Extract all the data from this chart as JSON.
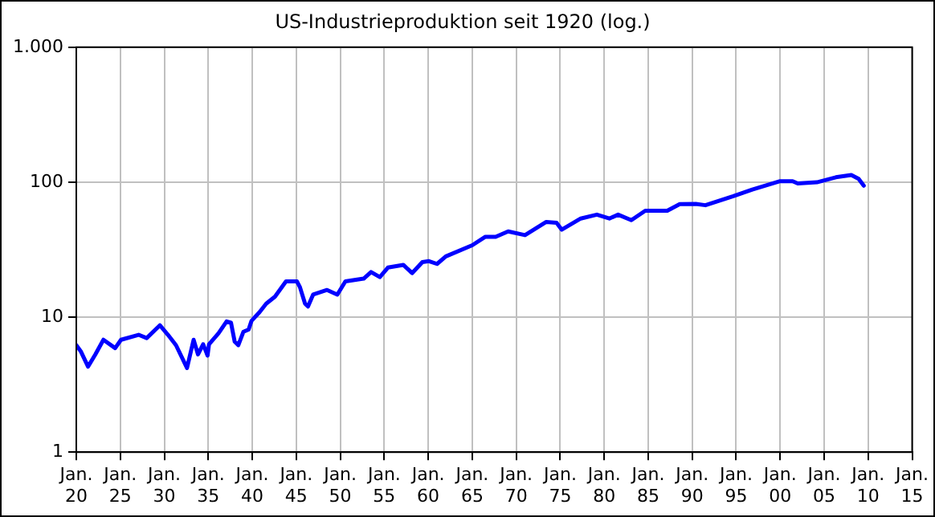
{
  "chart_data": {
    "type": "line",
    "title": "US-Industrieproduktion seit 1920 (log.)",
    "log": "y",
    "grid": true,
    "legend": false,
    "marker": "none",
    "line_style": "solid",
    "xlim": [
      "1920-01",
      "2015-01"
    ],
    "xticks": [
      {
        "value": "1920-01",
        "label": "Jan. 20"
      },
      {
        "value": "1925-01",
        "label": "Jan. 25"
      },
      {
        "value": "1930-01",
        "label": "Jan. 30"
      },
      {
        "value": "1935-01",
        "label": "Jan. 35"
      },
      {
        "value": "1940-01",
        "label": "Jan. 40"
      },
      {
        "value": "1945-01",
        "label": "Jan. 45"
      },
      {
        "value": "1950-01",
        "label": "Jan. 50"
      },
      {
        "value": "1955-01",
        "label": "Jan. 55"
      },
      {
        "value": "1960-01",
        "label": "Jan. 60"
      },
      {
        "value": "1965-01",
        "label": "Jan. 65"
      },
      {
        "value": "1970-01",
        "label": "Jan. 70"
      },
      {
        "value": "1975-01",
        "label": "Jan. 75"
      },
      {
        "value": "1980-01",
        "label": "Jan. 80"
      },
      {
        "value": "1985-01",
        "label": "Jan. 85"
      },
      {
        "value": "1990-01",
        "label": "Jan. 90"
      },
      {
        "value": "1995-01",
        "label": "Jan. 95"
      },
      {
        "value": "2000-01",
        "label": "Jan. 00"
      },
      {
        "value": "2005-01",
        "label": "Jan. 05"
      },
      {
        "value": "2010-01",
        "label": "Jan. 10"
      },
      {
        "value": "2015-01",
        "label": "Jan. 15"
      }
    ],
    "ylim": [
      1,
      1000
    ],
    "yticks": [
      1,
      10,
      100,
      {
        "value": 1000,
        "label": "1.000"
      }
    ],
    "series": [
      {
        "color": "#0000ff",
        "x": [
          "1920-01",
          "1920-07",
          "1921-05",
          "1922-03",
          "1923-02",
          "1924-06",
          "1925-02",
          "1927-02",
          "1928-01",
          "1929-07",
          "1930-06",
          "1931-05",
          "1932-08",
          "1933-05",
          "1933-11",
          "1934-06",
          "1934-12",
          "1935-02",
          "1936-03",
          "1937-02",
          "1937-08",
          "1938-01",
          "1938-06",
          "1939-01",
          "1939-08",
          "1939-12",
          "1940-11",
          "1941-08",
          "1942-08",
          "1943-11",
          "1945-02",
          "1945-06",
          "1946-01",
          "1946-05",
          "1946-12",
          "1948-07",
          "1949-09",
          "1950-08",
          "1952-09",
          "1953-07",
          "1954-07",
          "1955-06",
          "1957-03",
          "1958-03",
          "1959-05",
          "1960-02",
          "1961-01",
          "1962-01",
          "1965-01",
          "1966-07",
          "1967-09",
          "1969-02",
          "1971-01",
          "1973-06",
          "1974-08",
          "1975-03",
          "1977-05",
          "1979-03",
          "1980-08",
          "1981-08",
          "1983-02",
          "1984-09",
          "1987-03",
          "1988-08",
          "1990-06",
          "1991-07",
          "1994-09",
          "1996-11",
          "1999-12",
          "2001-06",
          "2002-01",
          "2004-03",
          "2006-05",
          "2008-02",
          "2008-12",
          "2009-07"
        ],
        "values": [
          6.2,
          5.6,
          4.3,
          5.3,
          6.8,
          5.9,
          6.8,
          7.4,
          7,
          8.7,
          7.4,
          6.2,
          4.2,
          6.8,
          5.3,
          6.3,
          5.2,
          6.3,
          7.6,
          9.3,
          9.1,
          6.6,
          6.2,
          7.8,
          8.1,
          9.4,
          10.9,
          12.6,
          14.2,
          18.4,
          18.4,
          16.7,
          12.6,
          12,
          14.7,
          15.9,
          14.7,
          18.4,
          19.3,
          21.6,
          19.8,
          23.3,
          24.4,
          21.2,
          25.6,
          26,
          24.8,
          28.2,
          34.1,
          39.4,
          39.4,
          43.2,
          40.5,
          50.8,
          50,
          44.5,
          53.8,
          57.5,
          53.8,
          57.5,
          52.3,
          61.4,
          61.4,
          68.8,
          69,
          67.5,
          78.7,
          88.2,
          101.6,
          101.6,
          97.8,
          99.8,
          108.7,
          113,
          106,
          94.2
        ]
      }
    ]
  }
}
